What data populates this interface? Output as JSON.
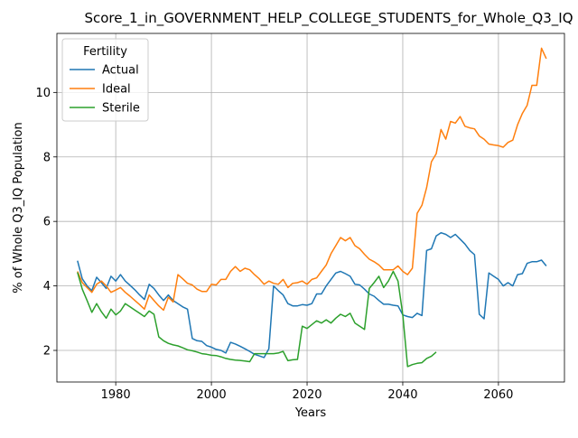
{
  "chart_data": {
    "type": "line",
    "title": "Score_1_in_GOVERNMENT_HELP_COLLEGE_STUDENTS_for_Whole_Q3_IQ",
    "xlabel": "Years",
    "ylabel": "% of Whole Q3_IQ Population",
    "xlim": [
      1968.1,
      1973.6
    ],
    "ylim": [
      1.02,
      11.83
    ],
    "xticks": [
      1980,
      2000,
      2020,
      2040,
      2060
    ],
    "yticks": [
      2,
      4,
      6,
      8,
      10
    ],
    "grid": true,
    "legend": {
      "title": "Fertility",
      "position": "upper-left"
    },
    "series": [
      {
        "name": "Actual",
        "color": "#1f77b4",
        "x": [
          1972,
          1973,
          1974,
          1975,
          1976,
          1977,
          1978,
          1979,
          1980,
          1981,
          1982,
          1983,
          1984,
          1985,
          1986,
          1987,
          1988,
          1989,
          1990,
          1991,
          1992,
          1993,
          1994,
          1995,
          1996,
          1997,
          1998,
          1999,
          2000,
          2001,
          2002,
          2003,
          2004,
          2005,
          2006,
          2007,
          2008,
          2009,
          2010,
          2011,
          2012,
          2013,
          2014,
          2015,
          2016,
          2017,
          2018,
          2019,
          2020,
          2021,
          2022,
          2023,
          2024,
          2025,
          2026,
          2027,
          2028,
          2029,
          2030,
          2031,
          2032,
          2033,
          2034,
          2035,
          2036,
          2037,
          2038,
          2039,
          2040,
          2041,
          2042,
          2043,
          2044,
          2045,
          2046,
          2047,
          2048,
          2049,
          2050,
          2051,
          2052,
          2053,
          2054,
          2055,
          2056,
          2057,
          2058,
          2059,
          2060,
          2061,
          2062,
          2063,
          2064,
          2065,
          2066,
          2067,
          2068,
          2069,
          2070
        ],
        "values": [
          4.78,
          4.22,
          4.0,
          3.85,
          4.27,
          4.1,
          3.92,
          4.3,
          4.15,
          4.35,
          4.15,
          4.02,
          3.88,
          3.72,
          3.58,
          4.05,
          3.92,
          3.72,
          3.55,
          3.72,
          3.55,
          3.45,
          3.35,
          3.28,
          2.37,
          2.3,
          2.28,
          2.15,
          2.1,
          2.03,
          2.0,
          1.92,
          2.25,
          2.2,
          2.13,
          2.05,
          1.97,
          1.88,
          1.83,
          1.78,
          2.05,
          4.0,
          3.85,
          3.72,
          3.45,
          3.38,
          3.38,
          3.42,
          3.4,
          3.45,
          3.75,
          3.75,
          4.0,
          4.2,
          4.4,
          4.45,
          4.38,
          4.3,
          4.05,
          4.03,
          3.9,
          3.75,
          3.68,
          3.55,
          3.43,
          3.43,
          3.4,
          3.38,
          3.1,
          3.05,
          3.02,
          3.15,
          3.08,
          5.1,
          5.15,
          5.55,
          5.65,
          5.6,
          5.5,
          5.6,
          5.45,
          5.3,
          5.1,
          4.97,
          3.12,
          2.98,
          4.4,
          4.3,
          4.2,
          4.0,
          4.1,
          4.0,
          4.35,
          4.38,
          4.7,
          4.75,
          4.75,
          4.8,
          4.62
        ]
      },
      {
        "name": "Ideal",
        "color": "#ff7f0e",
        "x": [
          1972,
          1973,
          1974,
          1975,
          1976,
          1977,
          1978,
          1979,
          1980,
          1981,
          1982,
          1983,
          1984,
          1985,
          1986,
          1987,
          1988,
          1989,
          1990,
          1991,
          1992,
          1993,
          1994,
          1995,
          1996,
          1997,
          1998,
          1999,
          2000,
          2001,
          2002,
          2003,
          2004,
          2005,
          2006,
          2007,
          2008,
          2009,
          2010,
          2011,
          2012,
          2013,
          2014,
          2015,
          2016,
          2017,
          2018,
          2019,
          2020,
          2021,
          2022,
          2023,
          2024,
          2025,
          2026,
          2027,
          2028,
          2029,
          2030,
          2031,
          2032,
          2033,
          2034,
          2035,
          2036,
          2037,
          2038,
          2039,
          2040,
          2041,
          2042,
          2043,
          2044,
          2045,
          2046,
          2047,
          2048,
          2049,
          2050,
          2051,
          2052,
          2053,
          2054,
          2055,
          2056,
          2057,
          2058,
          2059,
          2060,
          2061,
          2062,
          2063,
          2064,
          2065,
          2066,
          2067,
          2068,
          2069,
          2070
        ],
        "values": [
          4.45,
          4.1,
          3.95,
          3.8,
          4.05,
          4.15,
          4.0,
          3.8,
          3.87,
          3.95,
          3.8,
          3.68,
          3.55,
          3.42,
          3.28,
          3.72,
          3.55,
          3.38,
          3.25,
          3.65,
          3.5,
          4.35,
          4.22,
          4.08,
          4.03,
          3.9,
          3.83,
          3.83,
          4.05,
          4.03,
          4.2,
          4.2,
          4.45,
          4.6,
          4.45,
          4.55,
          4.5,
          4.35,
          4.22,
          4.05,
          4.15,
          4.08,
          4.05,
          4.2,
          3.95,
          4.08,
          4.1,
          4.15,
          4.05,
          4.2,
          4.25,
          4.45,
          4.65,
          5.0,
          5.25,
          5.5,
          5.4,
          5.5,
          5.25,
          5.15,
          4.98,
          4.83,
          4.75,
          4.65,
          4.5,
          4.5,
          4.5,
          4.62,
          4.45,
          4.35,
          4.55,
          6.25,
          6.5,
          7.05,
          7.85,
          8.1,
          8.85,
          8.55,
          9.1,
          9.05,
          9.25,
          8.95,
          8.9,
          8.87,
          8.65,
          8.55,
          8.4,
          8.37,
          8.35,
          8.3,
          8.45,
          8.52,
          9.0,
          9.35,
          9.6,
          10.22,
          10.22,
          11.37,
          11.05
        ]
      },
      {
        "name": "Sterile",
        "color": "#2ca02c",
        "x": [
          1972,
          1973,
          1974,
          1975,
          1976,
          1977,
          1978,
          1979,
          1980,
          1981,
          1982,
          1983,
          1984,
          1985,
          1986,
          1987,
          1988,
          1989,
          1990,
          1991,
          1992,
          1993,
          1994,
          1995,
          1996,
          1997,
          1998,
          1999,
          2000,
          2001,
          2002,
          2003,
          2004,
          2005,
          2006,
          2007,
          2008,
          2009,
          2010,
          2011,
          2012,
          2013,
          2014,
          2015,
          2016,
          2017,
          2018,
          2019,
          2020,
          2021,
          2022,
          2023,
          2024,
          2025,
          2026,
          2027,
          2028,
          2029,
          2030,
          2031,
          2032,
          2033,
          2034,
          2035,
          2036,
          2037,
          2038,
          2039,
          2040,
          2041,
          2042,
          2043,
          2044,
          2045,
          2046,
          2047
        ],
        "values": [
          4.42,
          3.9,
          3.55,
          3.18,
          3.45,
          3.2,
          3.0,
          3.28,
          3.1,
          3.22,
          3.45,
          3.35,
          3.25,
          3.15,
          3.05,
          3.22,
          3.12,
          2.42,
          2.3,
          2.22,
          2.17,
          2.14,
          2.08,
          2.02,
          1.99,
          1.95,
          1.9,
          1.88,
          1.85,
          1.84,
          1.8,
          1.75,
          1.72,
          1.7,
          1.69,
          1.67,
          1.65,
          1.9,
          1.9,
          1.9,
          1.9,
          1.9,
          1.92,
          1.97,
          1.68,
          1.71,
          1.72,
          2.75,
          2.68,
          2.8,
          2.92,
          2.85,
          2.95,
          2.85,
          3.0,
          3.12,
          3.05,
          3.15,
          2.85,
          2.75,
          2.65,
          3.92,
          4.1,
          4.3,
          3.95,
          4.15,
          4.45,
          4.15,
          3.1,
          1.5,
          1.56,
          1.6,
          1.62,
          1.75,
          1.82,
          1.95
        ]
      }
    ]
  }
}
